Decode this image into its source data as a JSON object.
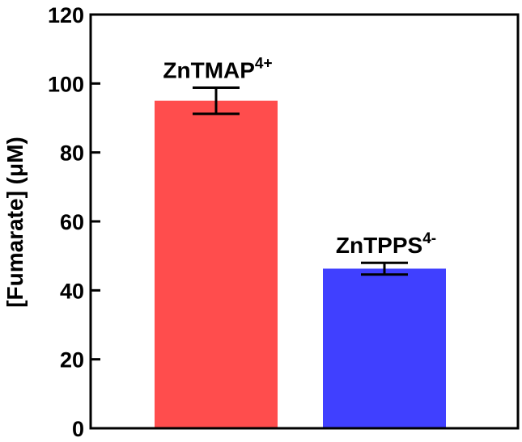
{
  "chart_data": {
    "type": "bar",
    "categories": [
      "ZnTMAP",
      "ZnTPPS"
    ],
    "category_superscripts": [
      "4+",
      "4-"
    ],
    "values": [
      95,
      46.3
    ],
    "errors": [
      3.8,
      1.7
    ],
    "colors": [
      "#ff4d4d",
      "#4040ff"
    ],
    "xlabel": "",
    "ylabel": "[Fumarate] (μM)",
    "ylim": [
      0,
      120
    ],
    "yticks": [
      0,
      20,
      40,
      60,
      80,
      100,
      120
    ],
    "grid": false,
    "legend": "none"
  }
}
